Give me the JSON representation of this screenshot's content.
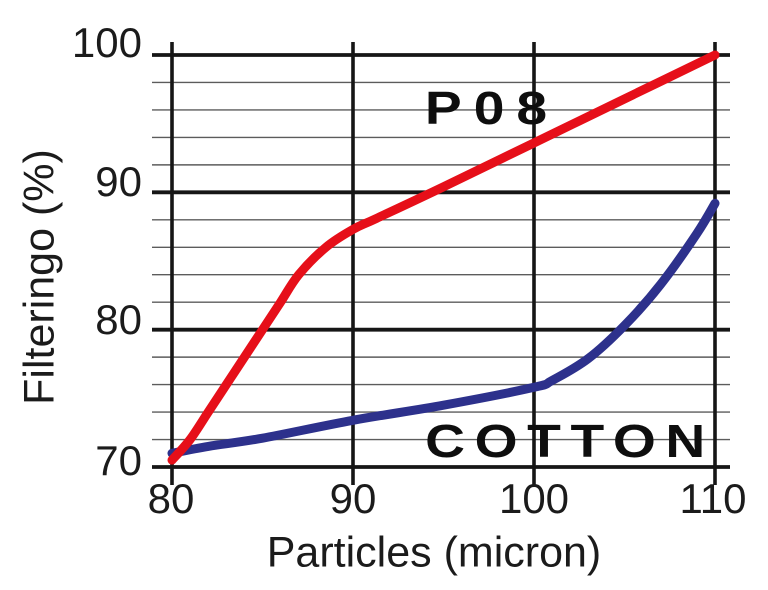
{
  "chart_data": {
    "type": "line",
    "title": "",
    "xlabel": "Particles (micron)",
    "ylabel": "Filteringo (%)",
    "xlim": [
      80,
      110
    ],
    "ylim": [
      70,
      100
    ],
    "x_ticks": [
      80,
      90,
      100,
      110
    ],
    "y_ticks": [
      70,
      80,
      90,
      100
    ],
    "y_minor_step": 2,
    "grid": true,
    "legend_position": "inline-labels",
    "grid_major_color": "#161616",
    "grid_minor_color": "#5c5c5c",
    "axis_text_color": "#1b1b1b",
    "series": [
      {
        "name": "P08",
        "color": "#e60f19",
        "points": [
          [
            80,
            70.5
          ],
          [
            81,
            72
          ],
          [
            82,
            74
          ],
          [
            83,
            76
          ],
          [
            84,
            78
          ],
          [
            85,
            80
          ],
          [
            86,
            82
          ],
          [
            87,
            84
          ],
          [
            88.5,
            86
          ],
          [
            90,
            87.3
          ],
          [
            91.3,
            88.1
          ],
          [
            95,
            90.4
          ],
          [
            100,
            93.6
          ],
          [
            105,
            96.8
          ],
          [
            110,
            100
          ]
        ]
      },
      {
        "name": "COTTON",
        "color": "#2d318c",
        "points": [
          [
            80,
            71
          ],
          [
            82,
            71.5
          ],
          [
            85,
            72.1
          ],
          [
            90,
            73.4
          ],
          [
            95,
            74.5
          ],
          [
            100,
            75.8
          ],
          [
            101,
            76.3
          ],
          [
            103,
            77.9
          ],
          [
            105,
            80.3
          ],
          [
            107,
            83.3
          ],
          [
            109,
            87
          ],
          [
            110,
            89.2
          ]
        ]
      }
    ]
  }
}
